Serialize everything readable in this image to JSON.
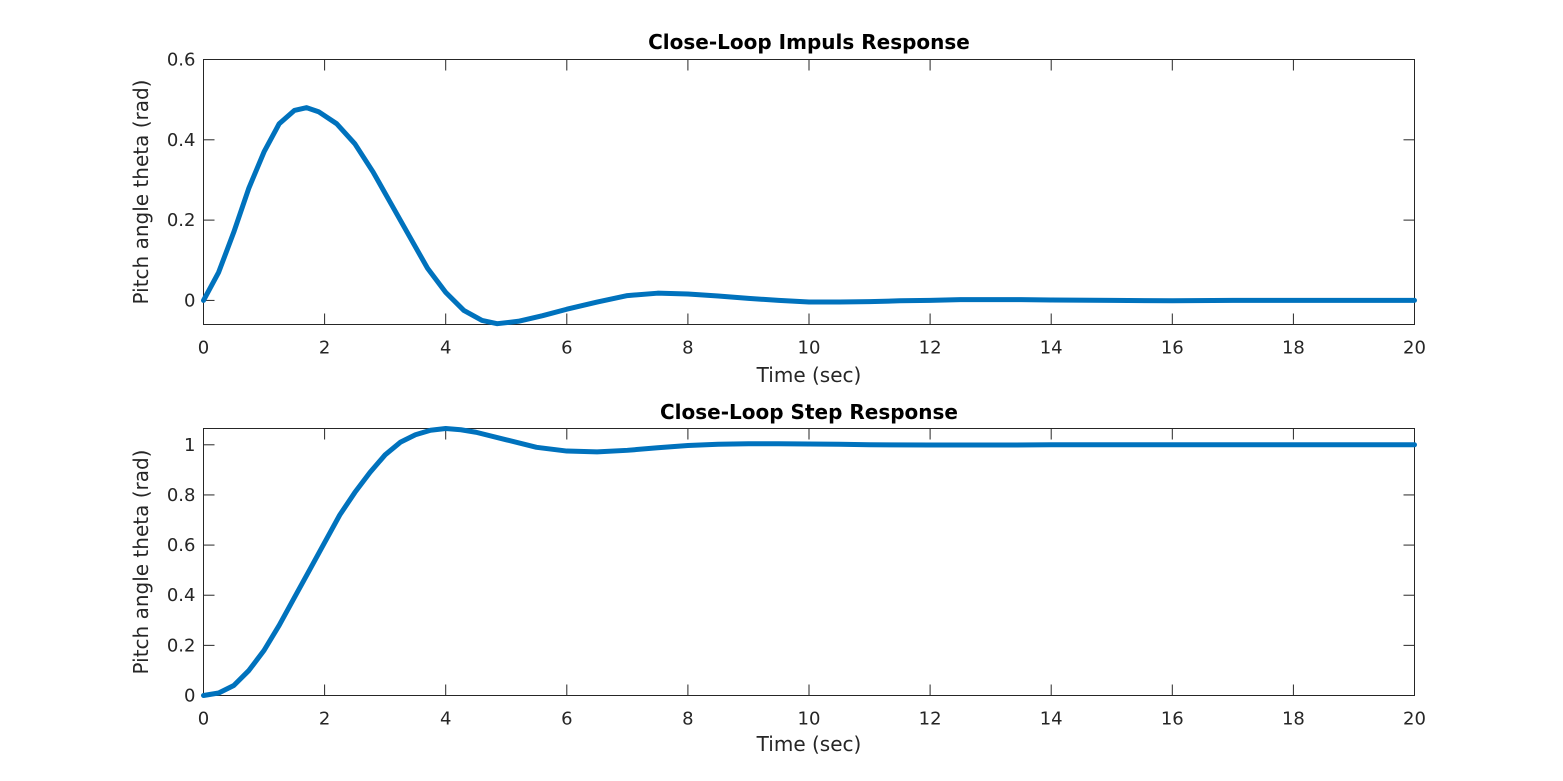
{
  "figure": {
    "background": "#ffffff",
    "series_color": "#0072bd"
  },
  "chart_data": [
    {
      "type": "line",
      "title": "Close-Loop Impuls Response",
      "xlabel": "Time (sec)",
      "ylabel": "Pitch angle theta (rad)",
      "xlim": [
        0,
        20
      ],
      "ylim": [
        -0.06,
        0.6
      ],
      "xticks": [
        0,
        2,
        4,
        6,
        8,
        10,
        12,
        14,
        16,
        18,
        20
      ],
      "xtick_labels": [
        "0",
        "2",
        "4",
        "6",
        "8",
        "10",
        "12",
        "14",
        "16",
        "18",
        "20"
      ],
      "yticks": [
        0,
        0.2,
        0.4,
        0.6
      ],
      "ytick_labels": [
        "0",
        "0.2",
        "0.4",
        "0.6"
      ],
      "grid": false,
      "series": [
        {
          "x": [
            0,
            0.25,
            0.5,
            0.75,
            1.0,
            1.25,
            1.5,
            1.7,
            1.9,
            2.2,
            2.5,
            2.8,
            3.1,
            3.4,
            3.7,
            4.0,
            4.3,
            4.6,
            4.85,
            5.2,
            5.6,
            6.0,
            6.5,
            7.0,
            7.5,
            8.0,
            8.5,
            9.0,
            9.5,
            10.0,
            10.5,
            11.0,
            11.5,
            12.0,
            12.5,
            13.0,
            13.5,
            14.0,
            15.0,
            16.0,
            17.0,
            18.0,
            19.0,
            20.0
          ],
          "y": [
            0.0,
            0.07,
            0.17,
            0.28,
            0.37,
            0.44,
            0.473,
            0.48,
            0.47,
            0.44,
            0.39,
            0.32,
            0.24,
            0.16,
            0.08,
            0.02,
            -0.025,
            -0.05,
            -0.058,
            -0.052,
            -0.038,
            -0.022,
            -0.004,
            0.012,
            0.018,
            0.016,
            0.011,
            0.005,
            0.0,
            -0.004,
            -0.004,
            -0.003,
            -0.001,
            0.0,
            0.002,
            0.002,
            0.002,
            0.001,
            0.0,
            -0.001,
            0.0,
            0.0,
            0.0,
            0.0
          ]
        }
      ]
    },
    {
      "type": "line",
      "title": "Close-Loop Step Response",
      "xlabel": "Time (sec)",
      "ylabel": "Pitch angle theta (rad)",
      "xlim": [
        0,
        20
      ],
      "ylim": [
        0,
        1.065
      ],
      "xticks": [
        0,
        2,
        4,
        6,
        8,
        10,
        12,
        14,
        16,
        18,
        20
      ],
      "xtick_labels": [
        "0",
        "2",
        "4",
        "6",
        "8",
        "10",
        "12",
        "14",
        "16",
        "18",
        "20"
      ],
      "yticks": [
        0,
        0.2,
        0.4,
        0.6,
        0.8,
        1
      ],
      "ytick_labels": [
        "0",
        "0.2",
        "0.4",
        "0.6",
        "0.8",
        "1"
      ],
      "grid": false,
      "series": [
        {
          "x": [
            0,
            0.25,
            0.5,
            0.75,
            1.0,
            1.25,
            1.5,
            1.75,
            2.0,
            2.25,
            2.5,
            2.75,
            3.0,
            3.25,
            3.5,
            3.75,
            4.0,
            4.25,
            4.5,
            5.0,
            5.5,
            6.0,
            6.5,
            7.0,
            7.5,
            8.0,
            8.5,
            9.0,
            9.5,
            10.0,
            10.5,
            11.0,
            12.0,
            13.0,
            14.0,
            15.0,
            16.0,
            17.0,
            18.0,
            19.0,
            20.0
          ],
          "y": [
            0.0,
            0.01,
            0.04,
            0.1,
            0.18,
            0.28,
            0.39,
            0.5,
            0.61,
            0.72,
            0.81,
            0.89,
            0.96,
            1.01,
            1.04,
            1.058,
            1.065,
            1.06,
            1.05,
            1.02,
            0.99,
            0.975,
            0.972,
            0.978,
            0.988,
            0.997,
            1.002,
            1.004,
            1.004,
            1.003,
            1.002,
            1.0,
            0.999,
            0.999,
            1.0,
            1.0,
            1.0,
            1.0,
            1.0,
            1.0,
            1.0
          ]
        }
      ]
    }
  ]
}
